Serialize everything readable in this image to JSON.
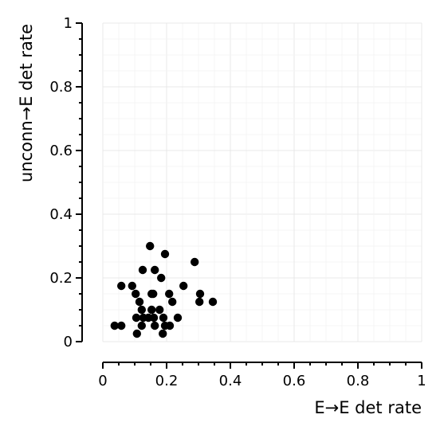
{
  "chart_data": {
    "type": "scatter",
    "title": "",
    "xlabel": "E→E det rate",
    "ylabel": "unconn→E det rate",
    "xlim": [
      0,
      1
    ],
    "ylim": [
      0,
      1
    ],
    "xticks": [
      "0",
      "0.2",
      "0.4",
      "0.6",
      "0.8",
      "1"
    ],
    "yticks": [
      "0",
      "0.2",
      "0.4",
      "0.6",
      "0.8",
      "1"
    ],
    "grid": true,
    "legend": "none",
    "marker_color": "#000000",
    "points": [
      {
        "x": 0.148,
        "y": 0.3
      },
      {
        "x": 0.195,
        "y": 0.275
      },
      {
        "x": 0.288,
        "y": 0.25
      },
      {
        "x": 0.125,
        "y": 0.225
      },
      {
        "x": 0.163,
        "y": 0.225
      },
      {
        "x": 0.183,
        "y": 0.2
      },
      {
        "x": 0.058,
        "y": 0.175
      },
      {
        "x": 0.092,
        "y": 0.175
      },
      {
        "x": 0.253,
        "y": 0.175
      },
      {
        "x": 0.103,
        "y": 0.15
      },
      {
        "x": 0.153,
        "y": 0.15
      },
      {
        "x": 0.158,
        "y": 0.15
      },
      {
        "x": 0.208,
        "y": 0.15
      },
      {
        "x": 0.305,
        "y": 0.15
      },
      {
        "x": 0.115,
        "y": 0.125
      },
      {
        "x": 0.218,
        "y": 0.125
      },
      {
        "x": 0.303,
        "y": 0.125
      },
      {
        "x": 0.345,
        "y": 0.125
      },
      {
        "x": 0.122,
        "y": 0.1
      },
      {
        "x": 0.153,
        "y": 0.1
      },
      {
        "x": 0.178,
        "y": 0.1
      },
      {
        "x": 0.105,
        "y": 0.075
      },
      {
        "x": 0.127,
        "y": 0.075
      },
      {
        "x": 0.143,
        "y": 0.075
      },
      {
        "x": 0.16,
        "y": 0.075
      },
      {
        "x": 0.19,
        "y": 0.075
      },
      {
        "x": 0.235,
        "y": 0.075
      },
      {
        "x": 0.037,
        "y": 0.05
      },
      {
        "x": 0.058,
        "y": 0.05
      },
      {
        "x": 0.122,
        "y": 0.05
      },
      {
        "x": 0.163,
        "y": 0.05
      },
      {
        "x": 0.195,
        "y": 0.05
      },
      {
        "x": 0.21,
        "y": 0.05
      },
      {
        "x": 0.107,
        "y": 0.025
      },
      {
        "x": 0.188,
        "y": 0.025
      }
    ]
  }
}
